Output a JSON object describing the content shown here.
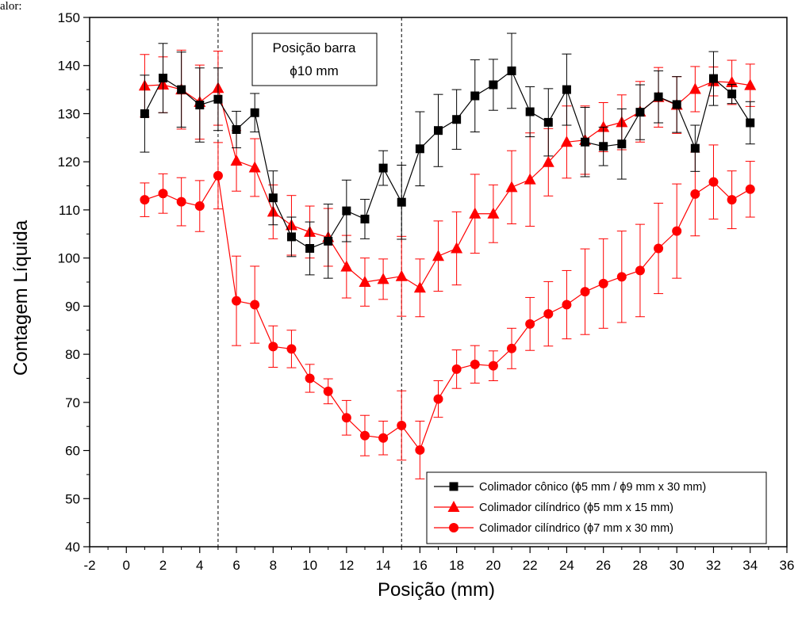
{
  "page_fragment": "alor:",
  "annotation": {
    "line1": "Posição barra",
    "line2": "ϕ10 mm"
  },
  "chart_data": {
    "type": "line",
    "title": "",
    "xlabel": "Posição (mm)",
    "ylabel": "Contagem Líquida",
    "xlim": [
      -2,
      36
    ],
    "ylim": [
      40,
      150
    ],
    "x_ticks": [
      -2,
      0,
      2,
      4,
      6,
      8,
      10,
      12,
      14,
      16,
      18,
      20,
      22,
      24,
      26,
      28,
      30,
      32,
      34,
      36
    ],
    "y_ticks": [
      40,
      50,
      60,
      70,
      80,
      90,
      100,
      110,
      120,
      130,
      140,
      150
    ],
    "grid": false,
    "legend_position": "bottom-right",
    "reference_lines_x": [
      5,
      15
    ],
    "x": [
      1,
      2,
      3,
      4,
      5,
      6,
      7,
      8,
      9,
      10,
      11,
      12,
      13,
      14,
      15,
      16,
      17,
      18,
      19,
      20,
      21,
      22,
      23,
      24,
      25,
      26,
      27,
      28,
      29,
      30,
      31,
      32,
      33,
      34
    ],
    "series": [
      {
        "name": "Colimador cônico (ϕ5 mm / ϕ9 mm x 30 mm)",
        "color": "#000000",
        "marker": "square",
        "values": [
          130,
          137.4,
          135,
          131.8,
          133,
          126.7,
          130.2,
          112.5,
          104.4,
          102,
          103.5,
          109.8,
          108.1,
          118.7,
          111.6,
          122.7,
          126.5,
          128.8,
          133.7,
          136,
          138.9,
          130.4,
          128.2,
          135,
          124.1,
          123.2,
          123.7,
          130.3,
          133.5,
          131.9,
          122.8,
          137.3,
          134.1,
          128.1
        ],
        "errors": [
          8,
          7.2,
          7.8,
          7.7,
          6.5,
          3.8,
          4,
          5.6,
          4.1,
          5.5,
          7.7,
          6.4,
          4.1,
          3.6,
          7.7,
          7.7,
          7.5,
          6.2,
          7.5,
          5.3,
          7.8,
          5.2,
          7,
          7.4,
          7.2,
          4,
          7.3,
          5.7,
          5.4,
          5.8,
          4.8,
          5.6,
          2,
          4.4
        ]
      },
      {
        "name": "Colimador cilíndrico (ϕ5 mm x 15 mm)",
        "color": "#ff0000",
        "marker": "triangle",
        "values": [
          135.8,
          136,
          135,
          132.4,
          135.3,
          120.2,
          118.8,
          109.6,
          106.8,
          105.4,
          104.3,
          98.2,
          95,
          95.6,
          96.2,
          93.8,
          100.4,
          102,
          109.2,
          109.2,
          114.7,
          116.3,
          119.9,
          124.1,
          124.5,
          127.2,
          128.2,
          130.4,
          133.4,
          131.8,
          135.1,
          136.7,
          136.5,
          135.9
        ],
        "errors": [
          6.5,
          5.8,
          8.2,
          7.7,
          7.7,
          6.3,
          6,
          5.6,
          6.2,
          5.4,
          6,
          6.5,
          5,
          4.2,
          8.3,
          6,
          7.3,
          7.6,
          8.2,
          6,
          7.6,
          9.7,
          7,
          7.5,
          7.1,
          5.1,
          5.7,
          6.3,
          6.2,
          5.9,
          4.7,
          3,
          4.6,
          4.4
        ]
      },
      {
        "name": "Colimador cilíndrico (ϕ7 mm x 30 mm)",
        "color": "#ff0000",
        "marker": "circle",
        "values": [
          112.1,
          113.4,
          111.7,
          110.8,
          117.1,
          91.1,
          90.3,
          81.6,
          81.1,
          75,
          72.3,
          66.8,
          63.1,
          62.6,
          65.2,
          60.1,
          70.7,
          76.9,
          77.9,
          77.6,
          81.2,
          86.3,
          88.4,
          90.3,
          93,
          94.7,
          96.1,
          97.4,
          102,
          105.6,
          113.3,
          115.8,
          112.1,
          114.3
        ],
        "errors": [
          3.5,
          4.1,
          5,
          5.3,
          6.9,
          9.3,
          8,
          4.3,
          3.9,
          2.9,
          2.6,
          3.6,
          4.2,
          3.5,
          7.2,
          6,
          3.8,
          4,
          3.9,
          3.1,
          4.2,
          5.5,
          6.7,
          7.1,
          8.9,
          9.3,
          9.5,
          9.6,
          9.4,
          9.8,
          8.7,
          7.7,
          6,
          5.8
        ]
      }
    ]
  }
}
